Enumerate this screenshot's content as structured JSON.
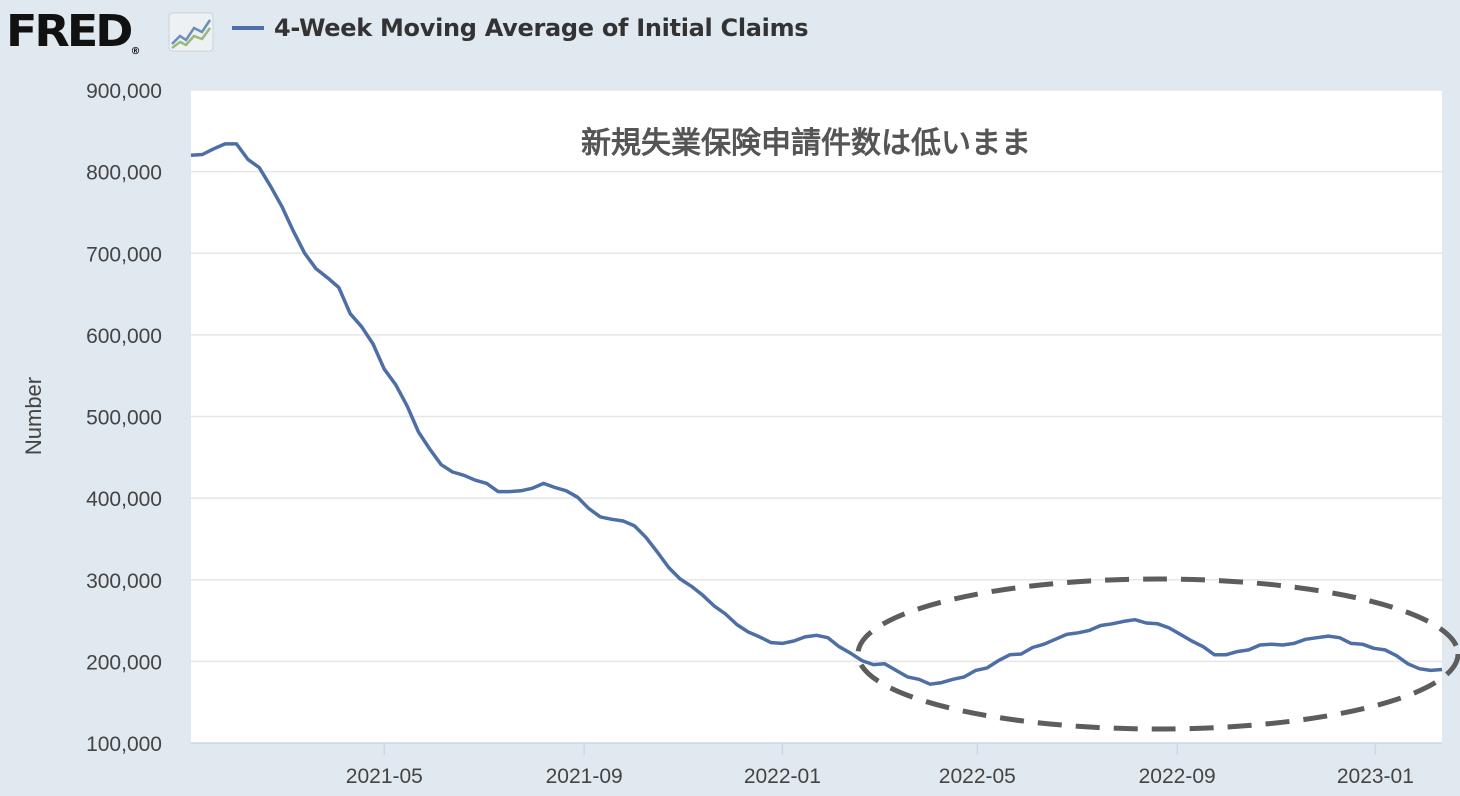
{
  "header": {
    "logo_text": "FRED",
    "logo_mark": "®",
    "logo_icon": "line-chart-icon",
    "legend_label": "4-Week Moving Average of Initial Claims",
    "legend_color": "#4e6ea6"
  },
  "chart_data": {
    "type": "line",
    "title": "新規失業保険申請件数は低いまま",
    "xlabel": "",
    "ylabel": "Number",
    "ylim": [
      100000,
      900000
    ],
    "y_ticks": [
      100000,
      200000,
      300000,
      400000,
      500000,
      600000,
      700000,
      800000,
      900000
    ],
    "y_tick_labels": [
      "100,000",
      "200,000",
      "300,000",
      "400,000",
      "500,000",
      "600,000",
      "700,000",
      "800,000",
      "900,000"
    ],
    "x_range": [
      "2021-01-02",
      "2023-02-11"
    ],
    "x_tick_labels": [
      "2021-05",
      "2021-09",
      "2022-01",
      "2022-05",
      "2022-09",
      "2023-01"
    ],
    "x_tick_dates": [
      "2021-05-01",
      "2021-09-01",
      "2022-01-01",
      "2022-05-01",
      "2022-09-01",
      "2023-01-01"
    ],
    "grid": true,
    "series": [
      {
        "color": "#4e6ea6",
        "x": [
          "2021-01-02",
          "2021-01-09",
          "2021-01-16",
          "2021-01-23",
          "2021-01-30",
          "2021-02-06",
          "2021-02-13",
          "2021-02-20",
          "2021-02-27",
          "2021-03-06",
          "2021-03-13",
          "2021-03-20",
          "2021-03-27",
          "2021-04-03",
          "2021-04-10",
          "2021-04-17",
          "2021-04-24",
          "2021-05-01",
          "2021-05-08",
          "2021-05-15",
          "2021-05-22",
          "2021-05-29",
          "2021-06-05",
          "2021-06-12",
          "2021-06-19",
          "2021-06-26",
          "2021-07-03",
          "2021-07-10",
          "2021-07-17",
          "2021-07-24",
          "2021-07-31",
          "2021-08-07",
          "2021-08-14",
          "2021-08-21",
          "2021-08-28",
          "2021-09-04",
          "2021-09-11",
          "2021-09-18",
          "2021-09-25",
          "2021-10-02",
          "2021-10-09",
          "2021-10-16",
          "2021-10-23",
          "2021-10-30",
          "2021-11-06",
          "2021-11-13",
          "2021-11-20",
          "2021-11-27",
          "2021-12-04",
          "2021-12-11",
          "2021-12-18",
          "2021-12-25",
          "2022-01-01",
          "2022-01-08",
          "2022-01-15",
          "2022-01-22",
          "2022-01-29",
          "2022-02-05",
          "2022-02-12",
          "2022-02-19",
          "2022-02-26",
          "2022-03-05",
          "2022-03-12",
          "2022-03-19",
          "2022-03-26",
          "2022-04-02",
          "2022-04-09",
          "2022-04-16",
          "2022-04-23",
          "2022-04-30",
          "2022-05-07",
          "2022-05-14",
          "2022-05-21",
          "2022-05-28",
          "2022-06-04",
          "2022-06-11",
          "2022-06-18",
          "2022-06-25",
          "2022-07-02",
          "2022-07-09",
          "2022-07-16",
          "2022-07-23",
          "2022-07-30",
          "2022-08-06",
          "2022-08-13",
          "2022-08-20",
          "2022-08-27",
          "2022-09-03",
          "2022-09-10",
          "2022-09-17",
          "2022-09-24",
          "2022-10-01",
          "2022-10-08",
          "2022-10-15",
          "2022-10-22",
          "2022-10-29",
          "2022-11-05",
          "2022-11-12",
          "2022-11-19",
          "2022-11-26",
          "2022-12-03",
          "2022-12-10",
          "2022-12-17",
          "2022-12-24",
          "2022-12-31",
          "2023-01-07",
          "2023-01-14",
          "2023-01-21",
          "2023-01-28",
          "2023-02-04",
          "2023-02-11"
        ],
        "values": [
          820000,
          821000,
          828000,
          834000,
          834000,
          815000,
          805000,
          782000,
          757000,
          727000,
          700000,
          681000,
          670000,
          658000,
          626000,
          610000,
          589000,
          558000,
          539000,
          513000,
          481000,
          460000,
          441000,
          432000,
          428000,
          422000,
          418000,
          408000,
          408000,
          409000,
          412000,
          418000,
          413000,
          409000,
          401000,
          387000,
          377000,
          374000,
          372000,
          366000,
          352000,
          334000,
          315000,
          301000,
          292000,
          281000,
          268000,
          258000,
          245000,
          236000,
          230000,
          223000,
          222000,
          225000,
          230000,
          232000,
          229000,
          218000,
          210000,
          201000,
          196000,
          197000,
          189000,
          181000,
          178000,
          172000,
          174000,
          178000,
          181000,
          189000,
          192000,
          201000,
          208000,
          209000,
          217000,
          221000,
          227000,
          233000,
          235000,
          238000,
          244000,
          246000,
          249000,
          251000,
          247000,
          246000,
          241000,
          233000,
          225000,
          218000,
          208000,
          208000,
          212000,
          214000,
          220000,
          221000,
          220000,
          222000,
          227000,
          229000,
          231000,
          229000,
          222000,
          221000,
          216000,
          214000,
          207000,
          197000,
          191000,
          189000,
          190000
        ]
      }
    ],
    "annotations": [
      "dashed-ellipse"
    ]
  }
}
